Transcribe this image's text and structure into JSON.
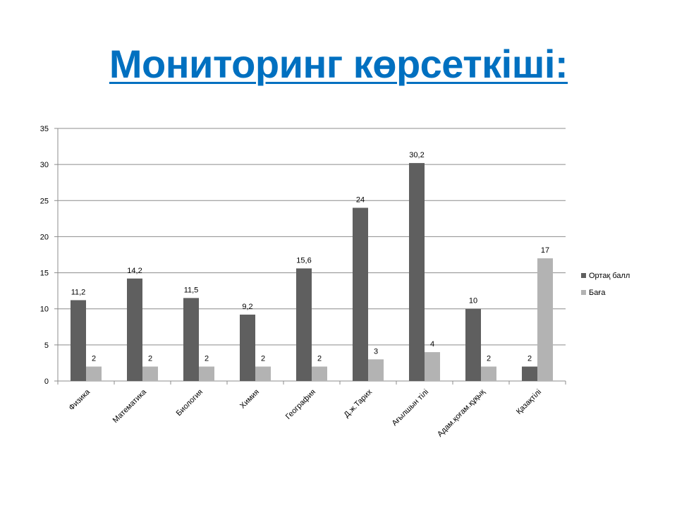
{
  "slide": {
    "title": "Мониторинг көрсеткіші:"
  },
  "chart_data": {
    "type": "bar",
    "categories": [
      "Физика",
      "Математика",
      "Биология",
      "Химия",
      "География",
      "Д.ж.Тарих",
      "Ағылшын тілі",
      "Адам.қоғам.құқық",
      "Қазақтілі"
    ],
    "series": [
      {
        "name": "Ортақ балл",
        "values": [
          11.2,
          14.2,
          11.5,
          9.2,
          15.6,
          24,
          30.2,
          10,
          2
        ],
        "labels": [
          "11,2",
          "14,2",
          "11,5",
          "9,2",
          "15,6",
          "24",
          "30,2",
          "10",
          "2"
        ],
        "color": "#5F5F5F"
      },
      {
        "name": "Баға",
        "values": [
          2,
          2,
          2,
          2,
          2,
          3,
          4,
          2,
          17
        ],
        "labels": [
          "2",
          "2",
          "2",
          "2",
          "2",
          "3",
          "4",
          "2",
          "17"
        ],
        "color": "#B3B3B3"
      }
    ],
    "y_ticks": [
      "0",
      "5",
      "10",
      "15",
      "20",
      "25",
      "30",
      "35"
    ],
    "ylim": [
      0,
      35
    ],
    "grid": true,
    "legend_position": "right"
  }
}
